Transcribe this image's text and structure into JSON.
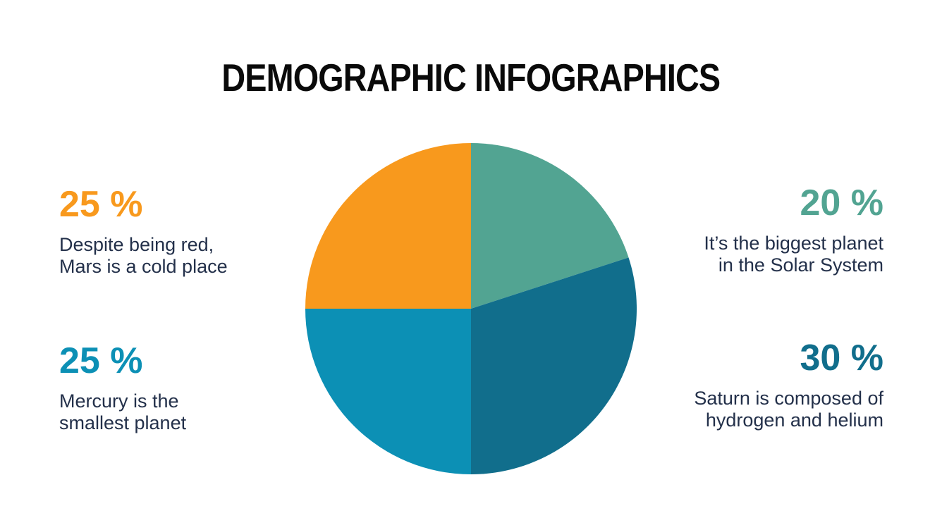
{
  "title": "DEMOGRAPHIC INFOGRAPHICS",
  "background": "#FFFFFF",
  "body_text_color": "#23304A",
  "stats": [
    {
      "name": "mars",
      "value": "25 %",
      "color": "#F8991D",
      "lines": [
        "Despite being red,",
        "Mars is a cold place"
      ]
    },
    {
      "name": "jupiter",
      "value": "20 %",
      "color": "#52A492",
      "lines": [
        "It’s the biggest planet",
        "in the Solar System"
      ]
    },
    {
      "name": "mercury",
      "value": "25 %",
      "color": "#0C90B5",
      "lines": [
        "Mercury is the",
        "smallest planet"
      ]
    },
    {
      "name": "saturn",
      "value": "30 %",
      "color": "#116E8C",
      "lines": [
        "Saturn is composed of",
        "hydrogen and helium"
      ]
    }
  ],
  "chart_data": {
    "type": "pie",
    "title": "DEMOGRAPHIC INFOGRAPHICS",
    "slice_names": [
      "jupiter",
      "saturn",
      "mercury",
      "mars"
    ],
    "labels": [
      "20 % — It’s the biggest planet in the Solar System",
      "30 % — Saturn is composed of hydrogen and helium",
      "25 % — Mercury is the smallest planet",
      "25 % — Despite being red, Mars is a cold place"
    ],
    "values": [
      20,
      30,
      25,
      25
    ],
    "colors": [
      "#52A492",
      "#116E8C",
      "#0C90B5",
      "#F8991D"
    ],
    "start_angle_deg": 0,
    "direction": "clockwise",
    "legend_position": "none"
  }
}
